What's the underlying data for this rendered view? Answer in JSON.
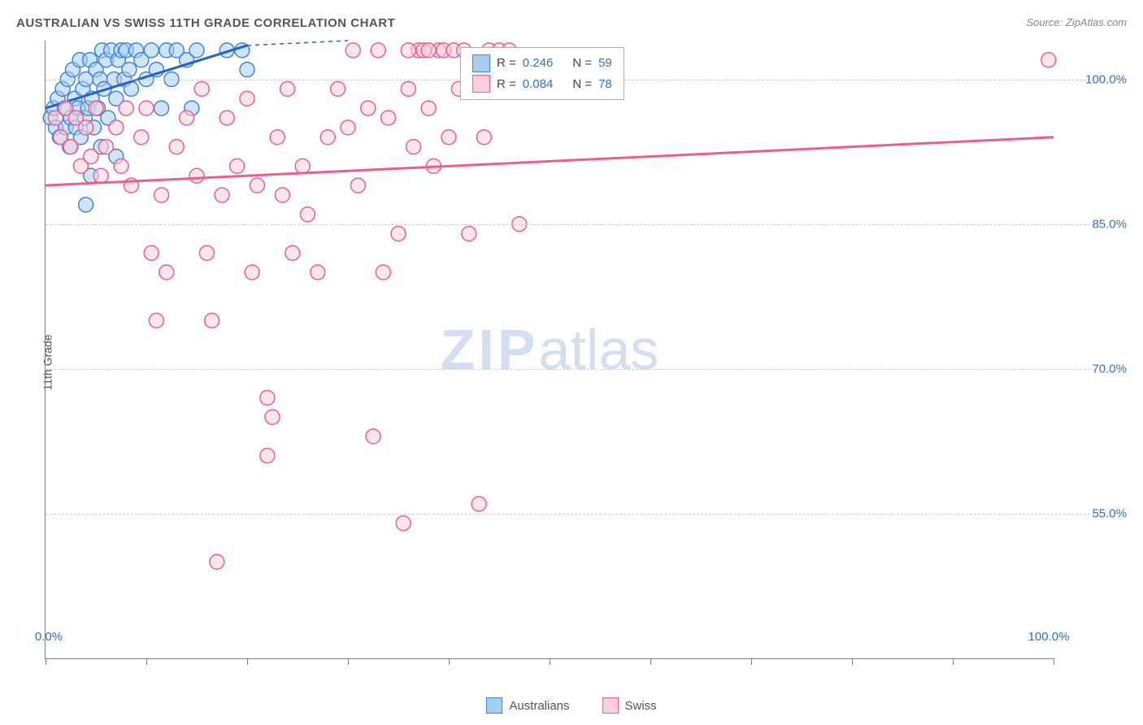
{
  "title": "AUSTRALIAN VS SWISS 11TH GRADE CORRELATION CHART",
  "source": "Source: ZipAtlas.com",
  "ylabel": "11th Grade",
  "watermark_zip": "ZIP",
  "watermark_atlas": "atlas",
  "chart": {
    "type": "scatter",
    "xlim": [
      0,
      100
    ],
    "ylim": [
      40,
      104
    ],
    "y_ticks": [
      55.0,
      70.0,
      85.0,
      100.0
    ],
    "y_tick_labels": [
      "55.0%",
      "70.0%",
      "85.0%",
      "100.0%"
    ],
    "x_tick_positions": [
      0,
      10,
      20,
      30,
      40,
      50,
      60,
      70,
      80,
      90,
      100
    ],
    "x_axis_label_left": "0.0%",
    "x_axis_label_right": "100.0%",
    "marker_radius": 9,
    "marker_stroke_width": 1.5,
    "background_color": "#ffffff",
    "grid_color": "#cccccc",
    "axis_color": "#808080",
    "series": [
      {
        "name": "Australians",
        "fill": "#a8cdf0",
        "stroke": "#3f85d6",
        "fill_opacity": 0.55,
        "line_color": "#2860c4",
        "line_width": 3,
        "trend": {
          "x1": 0,
          "y1": 97.0,
          "x2": 20,
          "y2": 103.5
        },
        "trend_dash": {
          "x1": 20,
          "y1": 103.5,
          "x2": 30,
          "y2": 104
        },
        "points": [
          [
            0.5,
            96
          ],
          [
            0.8,
            97
          ],
          [
            1.0,
            95
          ],
          [
            1.2,
            98
          ],
          [
            1.4,
            94
          ],
          [
            1.7,
            99
          ],
          [
            1.9,
            97
          ],
          [
            2.0,
            95
          ],
          [
            2.2,
            100
          ],
          [
            2.4,
            93
          ],
          [
            2.5,
            96
          ],
          [
            2.7,
            101
          ],
          [
            2.9,
            98
          ],
          [
            3.0,
            95
          ],
          [
            3.2,
            97
          ],
          [
            3.4,
            102
          ],
          [
            3.5,
            94
          ],
          [
            3.7,
            99
          ],
          [
            3.9,
            96
          ],
          [
            4.0,
            100
          ],
          [
            4.2,
            97
          ],
          [
            4.4,
            102
          ],
          [
            4.6,
            98
          ],
          [
            4.8,
            95
          ],
          [
            5.0,
            101
          ],
          [
            5.2,
            97
          ],
          [
            5.4,
            100
          ],
          [
            5.6,
            103
          ],
          [
            5.8,
            99
          ],
          [
            6.0,
            102
          ],
          [
            6.2,
            96
          ],
          [
            6.5,
            103
          ],
          [
            6.8,
            100
          ],
          [
            7.0,
            98
          ],
          [
            7.2,
            102
          ],
          [
            7.5,
            103
          ],
          [
            7.8,
            100
          ],
          [
            8.0,
            103
          ],
          [
            8.3,
            101
          ],
          [
            8.5,
            99
          ],
          [
            9.0,
            103
          ],
          [
            9.5,
            102
          ],
          [
            10.0,
            100
          ],
          [
            10.5,
            103
          ],
          [
            11.0,
            101
          ],
          [
            11.5,
            97
          ],
          [
            12.0,
            103
          ],
          [
            12.5,
            100
          ],
          [
            13.0,
            103
          ],
          [
            14.0,
            102
          ],
          [
            14.5,
            97
          ],
          [
            15.0,
            103
          ],
          [
            7.0,
            92
          ],
          [
            4.5,
            90
          ],
          [
            4.0,
            87
          ],
          [
            18.0,
            103
          ],
          [
            19.5,
            103
          ],
          [
            20.0,
            101
          ],
          [
            5.5,
            93
          ]
        ]
      },
      {
        "name": "Swiss",
        "fill": "#fbd0dc",
        "stroke": "#ee5e8d",
        "fill_opacity": 0.55,
        "line_color": "#ee5e8d",
        "line_width": 3,
        "trend": {
          "x1": 0,
          "y1": 89.0,
          "x2": 100,
          "y2": 94.0
        },
        "points": [
          [
            1.0,
            96
          ],
          [
            1.5,
            94
          ],
          [
            2.0,
            97
          ],
          [
            2.5,
            93
          ],
          [
            3.0,
            96
          ],
          [
            3.5,
            91
          ],
          [
            4.0,
            95
          ],
          [
            4.5,
            92
          ],
          [
            5.0,
            97
          ],
          [
            5.5,
            90
          ],
          [
            6.0,
            93
          ],
          [
            7.0,
            95
          ],
          [
            7.5,
            91
          ],
          [
            8.0,
            97
          ],
          [
            8.5,
            89
          ],
          [
            9.5,
            94
          ],
          [
            10.0,
            97
          ],
          [
            10.5,
            82
          ],
          [
            11.0,
            75
          ],
          [
            11.5,
            88
          ],
          [
            12.0,
            80
          ],
          [
            13.0,
            93
          ],
          [
            14.0,
            96
          ],
          [
            15.0,
            90
          ],
          [
            15.5,
            99
          ],
          [
            16.0,
            82
          ],
          [
            16.5,
            75
          ],
          [
            17.0,
            50
          ],
          [
            17.5,
            88
          ],
          [
            18.0,
            96
          ],
          [
            19.0,
            91
          ],
          [
            20.0,
            98
          ],
          [
            20.5,
            80
          ],
          [
            21.0,
            89
          ],
          [
            22.0,
            67
          ],
          [
            22.5,
            65
          ],
          [
            22.0,
            61
          ],
          [
            23.0,
            94
          ],
          [
            23.5,
            88
          ],
          [
            24.0,
            99
          ],
          [
            24.5,
            82
          ],
          [
            25.5,
            91
          ],
          [
            26.0,
            86
          ],
          [
            27.0,
            80
          ],
          [
            28.0,
            94
          ],
          [
            29.0,
            99
          ],
          [
            30.0,
            95
          ],
          [
            30.5,
            103
          ],
          [
            31.0,
            89
          ],
          [
            32.0,
            97
          ],
          [
            32.5,
            63
          ],
          [
            33.0,
            103
          ],
          [
            33.5,
            80
          ],
          [
            34.0,
            96
          ],
          [
            35.0,
            84
          ],
          [
            35.5,
            54
          ],
          [
            36.0,
            99
          ],
          [
            36.5,
            93
          ],
          [
            37.0,
            103
          ],
          [
            38.0,
            97
          ],
          [
            38.5,
            91
          ],
          [
            39.0,
            103
          ],
          [
            40.0,
            94
          ],
          [
            41.0,
            99
          ],
          [
            42.0,
            84
          ],
          [
            43.0,
            56
          ],
          [
            43.5,
            94
          ],
          [
            44.0,
            103
          ],
          [
            47.0,
            85
          ],
          [
            36.0,
            103
          ],
          [
            37.5,
            103
          ],
          [
            38.0,
            103
          ],
          [
            39.5,
            103
          ],
          [
            40.5,
            103
          ],
          [
            41.5,
            103
          ],
          [
            45.0,
            103
          ],
          [
            46.0,
            103
          ],
          [
            99.5,
            102
          ]
        ]
      }
    ]
  },
  "stats_legend": {
    "rows": [
      {
        "swatch_fill": "#a8cdf0",
        "swatch_stroke": "#3f85d6",
        "r_label": "R =",
        "r": "0.246",
        "n_label": "N =",
        "n": "59"
      },
      {
        "swatch_fill": "#fbd0dc",
        "swatch_stroke": "#ee5e8d",
        "r_label": "R =",
        "r": "0.084",
        "n_label": "N =",
        "n": "78"
      }
    ]
  },
  "bottom_legend": [
    {
      "swatch_fill": "#a8cdf0",
      "swatch_stroke": "#3f85d6",
      "label": "Australians"
    },
    {
      "swatch_fill": "#fbd0dc",
      "swatch_stroke": "#ee5e8d",
      "label": "Swiss"
    }
  ]
}
